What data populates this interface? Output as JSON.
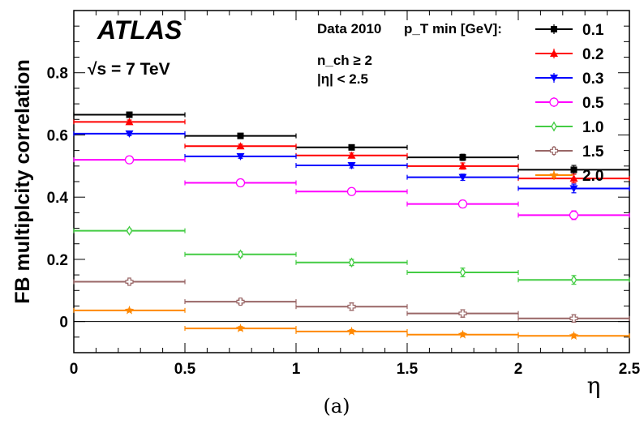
{
  "chart_data": {
    "type": "scatter",
    "title": "",
    "xlabel": "η",
    "ylabel": "FB multiplcity correlation",
    "caption": "(a)",
    "xlim": [
      0,
      2.5
    ],
    "ylim": [
      -0.1,
      1.0
    ],
    "x_ticks": [
      "0",
      "0.5",
      "1",
      "1.5",
      "2",
      "2.5"
    ],
    "y_ticks": [
      "0",
      "0.2",
      "0.4",
      "0.6",
      "0.8"
    ],
    "annotations": {
      "experiment": "ATLAS",
      "energy": "√s = 7 TeV",
      "dataset": "Data 2010",
      "legend_title": "p_T min [GeV]:",
      "selection_1": "n_ch ≥ 2",
      "selection_2": "|η| < 2.5"
    },
    "legend_placement": "top-right",
    "bin_edges": [
      0,
      0.5,
      1.0,
      1.5,
      2.0,
      2.5
    ],
    "x": [
      0.25,
      0.75,
      1.25,
      1.75,
      2.25
    ],
    "series": [
      {
        "name": "0.1",
        "color": "#000000",
        "marker": "filled-square",
        "values": [
          0.665,
          0.597,
          0.56,
          0.528,
          0.488
        ],
        "errors": [
          0.006,
          0.006,
          0.008,
          0.01,
          0.014
        ]
      },
      {
        "name": "0.2",
        "color": "#ff0000",
        "marker": "filled-triangle-up",
        "values": [
          0.642,
          0.564,
          0.534,
          0.5,
          0.46
        ],
        "errors": [
          0.006,
          0.006,
          0.008,
          0.01,
          0.014
        ]
      },
      {
        "name": "0.3",
        "color": "#0000ff",
        "marker": "filled-triangle-down",
        "values": [
          0.604,
          0.531,
          0.502,
          0.464,
          0.428
        ],
        "errors": [
          0.006,
          0.006,
          0.008,
          0.01,
          0.014
        ]
      },
      {
        "name": "0.5",
        "color": "#ff00ff",
        "marker": "open-circle",
        "values": [
          0.52,
          0.446,
          0.418,
          0.378,
          0.342
        ],
        "errors": [
          0.006,
          0.006,
          0.008,
          0.012,
          0.014
        ]
      },
      {
        "name": "1.0",
        "color": "#44cc44",
        "marker": "open-diamond",
        "values": [
          0.292,
          0.216,
          0.19,
          0.158,
          0.134
        ],
        "errors": [
          0.006,
          0.008,
          0.01,
          0.014,
          0.014
        ]
      },
      {
        "name": "1.5",
        "color": "#996666",
        "marker": "open-cross",
        "values": [
          0.128,
          0.064,
          0.048,
          0.026,
          0.01
        ],
        "errors": [
          0.006,
          0.008,
          0.012,
          0.012,
          0.012
        ]
      },
      {
        "name": "2.0",
        "color": "#ff8800",
        "marker": "star",
        "values": [
          0.036,
          -0.022,
          -0.032,
          -0.042,
          -0.046
        ],
        "errors": [
          0.004,
          0.006,
          0.006,
          0.006,
          0.006
        ]
      }
    ]
  }
}
